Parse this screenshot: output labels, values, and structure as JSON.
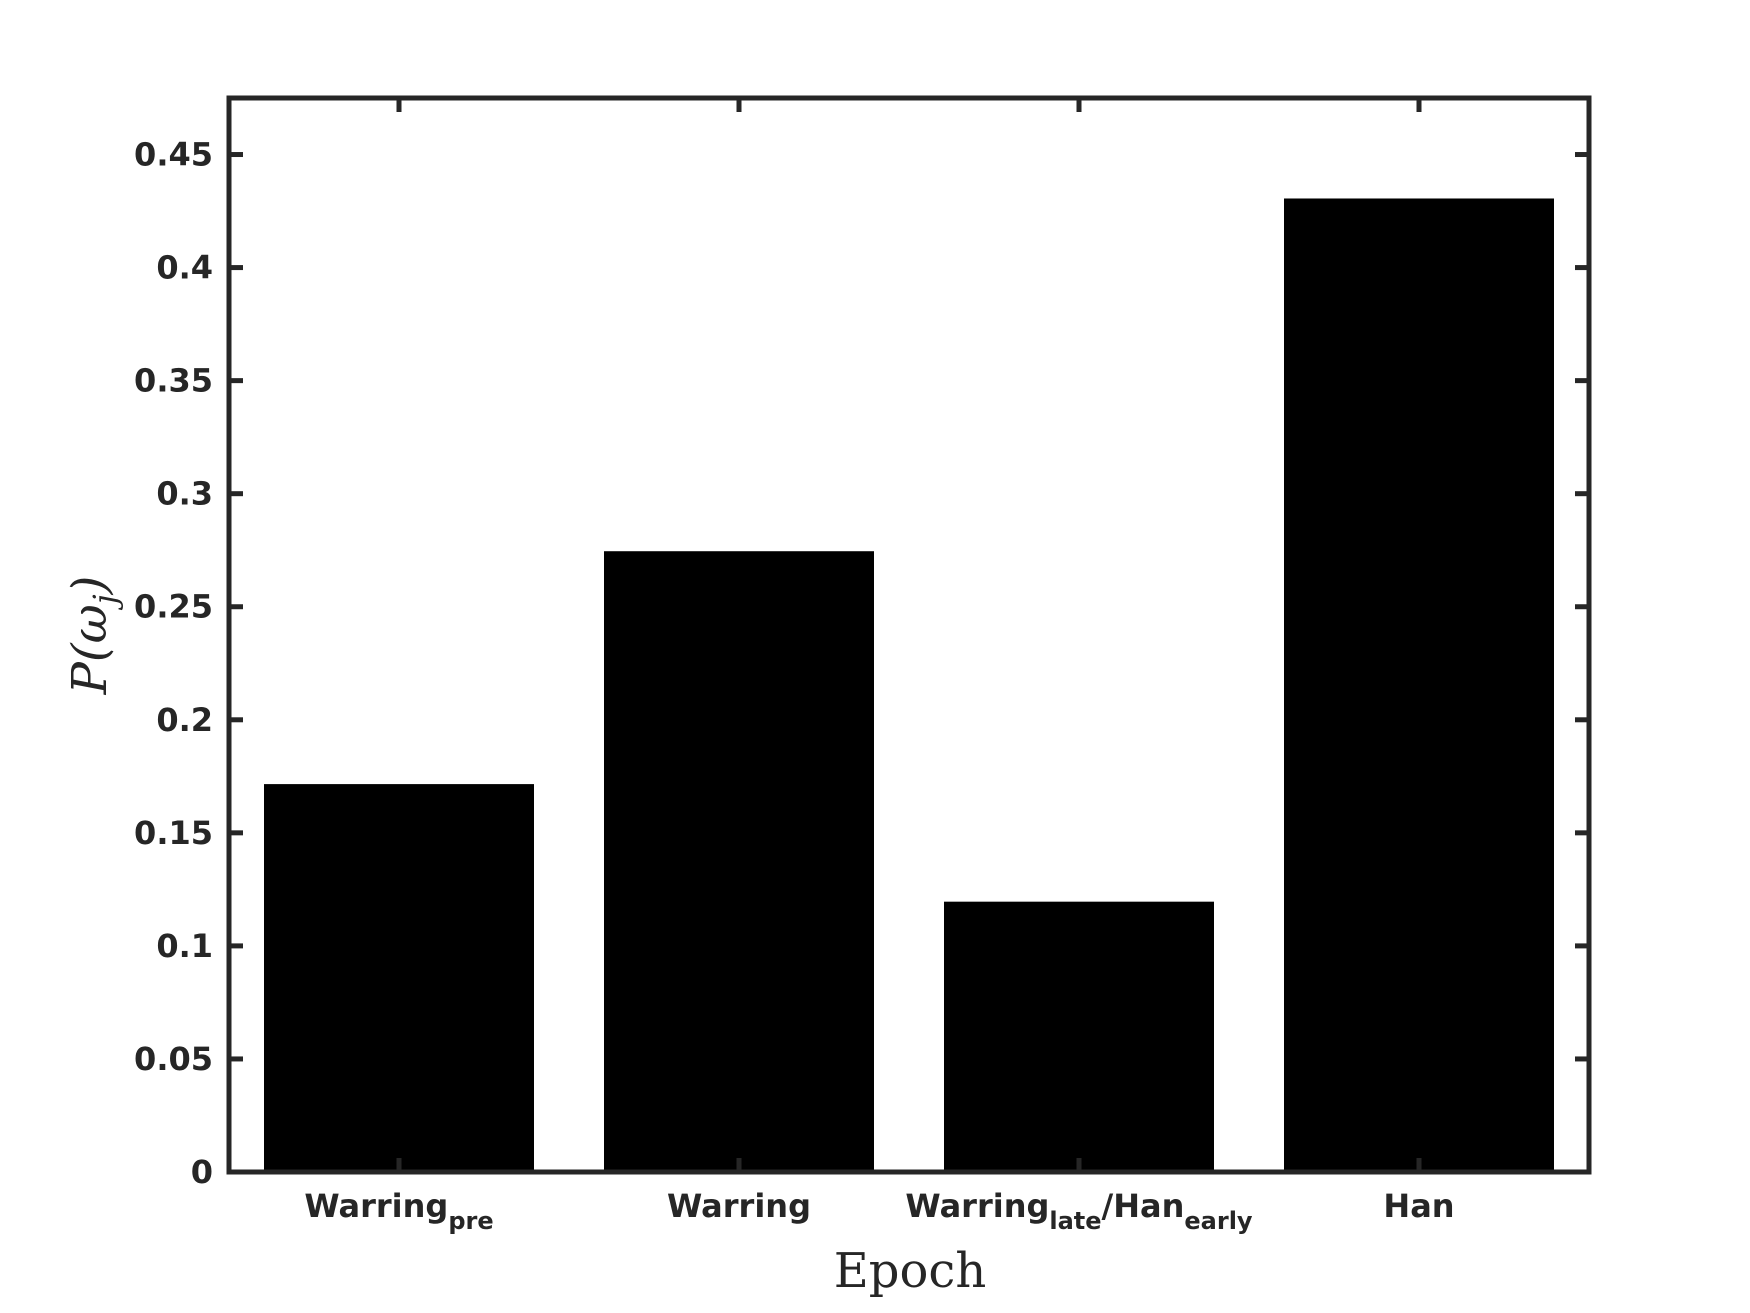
{
  "chart_data": {
    "type": "bar",
    "categories": [
      {
        "base": "Warring",
        "sub": "pre",
        "mid": "",
        "base2": "",
        "sub2": ""
      },
      {
        "base": "Warring",
        "sub": "",
        "mid": "",
        "base2": "",
        "sub2": ""
      },
      {
        "base": "Warring",
        "sub": "late",
        "mid": "/Han",
        "base2": "",
        "sub2": "early"
      },
      {
        "base": "Han",
        "sub": "",
        "mid": "",
        "base2": "",
        "sub2": ""
      }
    ],
    "values": [
      0.172,
      0.275,
      0.12,
      0.431
    ],
    "ylim": [
      0,
      0.475
    ],
    "yticks": [
      "0",
      "0.05",
      "0.1",
      "0.15",
      "0.2",
      "0.25",
      "0.3",
      "0.35",
      "0.4",
      "0.45"
    ],
    "ytick_values": [
      0,
      0.05,
      0.1,
      0.15,
      0.2,
      0.25,
      0.3,
      0.35,
      0.4,
      0.45
    ],
    "xlabel": "Epoch",
    "ylabel": "P(ωj)",
    "ylabel_parts": {
      "prefix": "P(",
      "omega": "ω",
      "sub": "j",
      "suffix": ")"
    },
    "grid": false,
    "bar_color": "#000000",
    "axis_color": "#262626"
  }
}
